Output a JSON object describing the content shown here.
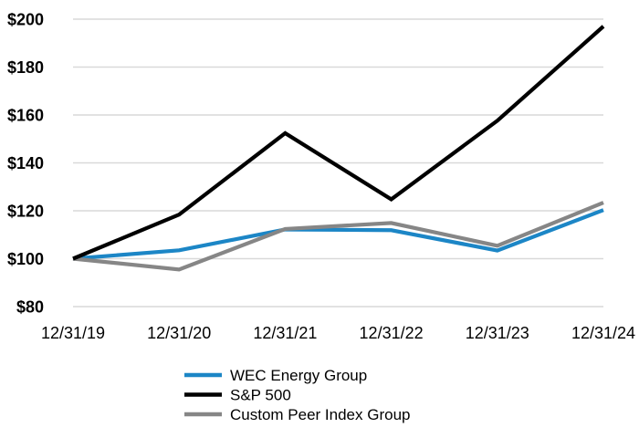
{
  "chart_data": {
    "type": "line",
    "title": "",
    "xlabel": "",
    "ylabel": "",
    "x_labels": [
      "12/31/19",
      "12/31/20",
      "12/31/21",
      "12/31/22",
      "12/31/23",
      "12/31/24"
    ],
    "y_tick_labels": [
      "$200",
      "$180",
      "$160",
      "$140",
      "$120",
      "$100",
      "$80"
    ],
    "y_tick_values": [
      200,
      180,
      160,
      140,
      120,
      100,
      80
    ],
    "ylim": [
      80,
      200
    ],
    "grid": true,
    "gridline_color": "#d9d9d9",
    "background_color": "#ffffff",
    "axis_text_color": "#000000",
    "legend_position": "bottom",
    "series": [
      {
        "name": "WEC Energy Group",
        "color": "#1c86c6",
        "values": [
          100,
          103.5,
          112.2,
          111.9,
          103.4,
          120.3
        ]
      },
      {
        "name": "S&P 500",
        "color": "#000000",
        "values": [
          100,
          118.4,
          152.4,
          124.8,
          157.6,
          197.0
        ]
      },
      {
        "name": "Custom Peer Index Group",
        "color": "#868686",
        "values": [
          100,
          95.5,
          112.4,
          114.9,
          105.4,
          123.4
        ]
      }
    ]
  }
}
